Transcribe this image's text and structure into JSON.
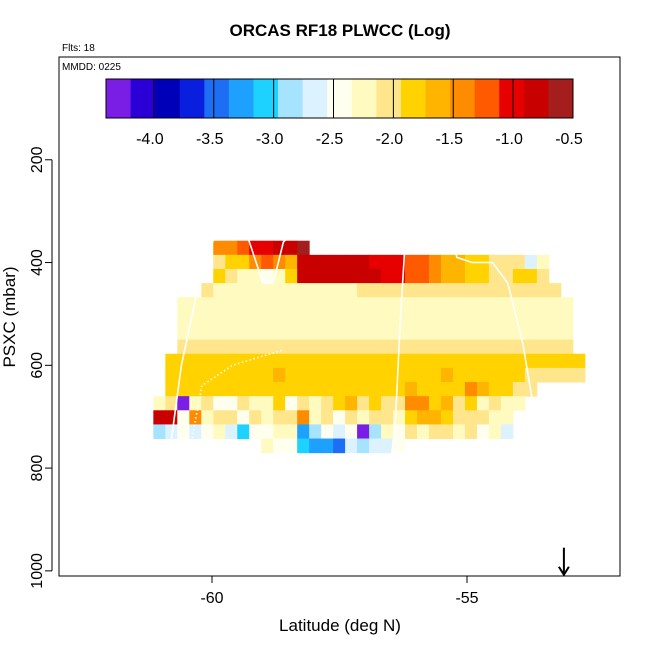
{
  "chart_data": {
    "type": "heatmap",
    "title": "ORCAS RF18 PLWCC (Log)",
    "flights_label": "Flts: 18",
    "date_label": "MMDD: 0225",
    "xlabel": "Latitude (deg N)",
    "ylabel": "PSXC (mbar)",
    "xlim": [
      -63.0,
      -52.0
    ],
    "ylim": [
      1010,
      0
    ],
    "x_ticks": [
      {
        "value": -60,
        "label": "-60"
      },
      {
        "value": -55,
        "label": "-55"
      }
    ],
    "y_ticks": [
      {
        "value": 200,
        "label": "200"
      },
      {
        "value": 400,
        "label": "400"
      },
      {
        "value": 600,
        "label": "600"
      },
      {
        "value": 800,
        "label": "800"
      },
      {
        "value": 1000,
        "label": "1000"
      }
    ],
    "colorbar": {
      "range": [
        -4.4,
        -0.5
      ],
      "colors": [
        "#7a1ee6",
        "#2a00d6",
        "#0000b8",
        "#0a1ee0",
        "#1e6ef5",
        "#1ea0ff",
        "#1ed2ff",
        "#a6e3ff",
        "#dcf2ff",
        "#fffff0",
        "#fffac0",
        "#ffe68c",
        "#ffd200",
        "#ffb400",
        "#ff8c00",
        "#ff5a00",
        "#e60000",
        "#c80000",
        "#a51e1e"
      ],
      "ticks": [
        {
          "value": -4.0,
          "label": "-4.0"
        },
        {
          "value": -3.5,
          "label": "-3.5"
        },
        {
          "value": -3.0,
          "label": "-3.0"
        },
        {
          "value": -2.5,
          "label": "-2.5"
        },
        {
          "value": -2.0,
          "label": "-2.0"
        },
        {
          "value": -1.5,
          "label": "-1.5"
        },
        {
          "value": -1.0,
          "label": "-1.0"
        },
        {
          "value": -0.5,
          "label": "-0.5"
        }
      ]
    },
    "cells": {
      "x_start": -61.15,
      "dx": 0.235,
      "p_start": 330,
      "dp": 27.5,
      "rows": [
        [
          null,
          null,
          null,
          null,
          null,
          null,
          null,
          null,
          null,
          null,
          null,
          null,
          null,
          null,
          null,
          null,
          null,
          null,
          null,
          null,
          null,
          null,
          null,
          null,
          null,
          null,
          null,
          null,
          null,
          null,
          null,
          null,
          null,
          null,
          null,
          null
        ],
        [
          null,
          null,
          null,
          null,
          null,
          -1.5,
          -1.4,
          -1.3,
          -1.1,
          -1.0,
          -0.9,
          -0.8,
          -0.6,
          null,
          null,
          null,
          null,
          null,
          null,
          null,
          null,
          null,
          null,
          null,
          null,
          null,
          null,
          null,
          null,
          null,
          null,
          null,
          null,
          null,
          null,
          null
        ],
        [
          null,
          null,
          null,
          null,
          null,
          -2.0,
          -1.9,
          -1.8,
          -1.4,
          -1.3,
          -1.5,
          -1.6,
          -0.8,
          -0.8,
          -0.8,
          -0.9,
          -0.9,
          -0.9,
          -1.0,
          -1.0,
          -1.1,
          -1.2,
          -1.3,
          -1.5,
          -1.6,
          -1.7,
          -1.8,
          -1.9,
          -2.0,
          -2.0,
          -2.1,
          -2.6,
          -2.3,
          null,
          null,
          null
        ],
        [
          null,
          null,
          null,
          null,
          null,
          -1.8,
          -2.0,
          -2.2,
          -2.3,
          -2.5,
          -2.2,
          -1.9,
          -0.8,
          -0.8,
          -0.8,
          -0.9,
          -0.9,
          -0.9,
          -0.9,
          -1.0,
          -1.1,
          -1.2,
          -1.3,
          -1.4,
          -1.6,
          -1.7,
          -1.8,
          -1.9,
          -2.0,
          -2.0,
          -1.9,
          -1.9,
          -2.0,
          null,
          null,
          null
        ],
        [
          null,
          null,
          null,
          null,
          -2.1,
          -2.2,
          -2.2,
          -2.2,
          -2.2,
          -2.2,
          -2.2,
          -2.2,
          -2.2,
          -2.2,
          -2.2,
          -2.2,
          -2.2,
          -2.1,
          -2.1,
          -2.1,
          -2.1,
          -2.1,
          -2.1,
          -2.1,
          -2.1,
          -2.1,
          -2.1,
          -2.1,
          -2.1,
          -2.1,
          -2.1,
          -2.1,
          -2.1,
          -2.1,
          null,
          null
        ],
        [
          null,
          null,
          -2.2,
          -2.2,
          -2.2,
          -2.3,
          -2.3,
          -2.3,
          -2.2,
          -2.2,
          -2.2,
          -2.2,
          -2.2,
          -2.2,
          -2.2,
          -2.2,
          -2.2,
          -2.2,
          -2.2,
          -2.2,
          -2.2,
          -2.2,
          -2.2,
          -2.2,
          -2.2,
          -2.2,
          -2.2,
          -2.2,
          -2.2,
          -2.2,
          -2.2,
          -2.2,
          -2.2,
          -2.2,
          -2.2,
          null
        ],
        [
          null,
          null,
          -2.3,
          -2.3,
          -2.3,
          -2.3,
          -2.3,
          -2.3,
          -2.3,
          -2.3,
          -2.2,
          -2.2,
          -2.3,
          -2.3,
          -2.3,
          -2.3,
          -2.2,
          -2.2,
          -2.2,
          -2.2,
          -2.2,
          -2.2,
          -2.2,
          -2.2,
          -2.2,
          -2.2,
          -2.2,
          -2.2,
          -2.2,
          -2.2,
          -2.2,
          -2.2,
          -2.2,
          -2.2,
          -2.2,
          null
        ],
        [
          null,
          null,
          -2.2,
          -2.2,
          -2.2,
          -2.2,
          -2.2,
          -2.2,
          -2.2,
          -2.2,
          -2.2,
          -2.2,
          -2.2,
          -2.2,
          -2.2,
          -2.2,
          -2.2,
          -2.2,
          -2.2,
          -2.2,
          -2.2,
          -2.2,
          -2.2,
          -2.2,
          -2.2,
          -2.2,
          -2.2,
          -2.2,
          -2.2,
          -2.2,
          -2.2,
          -2.2,
          -2.2,
          -2.2,
          -2.2,
          null
        ],
        [
          null,
          null,
          -2.1,
          -2.1,
          -2.1,
          -2.1,
          -2.1,
          -2.1,
          -2.1,
          -2.1,
          -2.1,
          -2.1,
          -2.1,
          -2.1,
          -2.1,
          -2.1,
          -2.1,
          -2.1,
          -2.1,
          -2.1,
          -2.1,
          -2.1,
          -2.1,
          -2.1,
          -2.1,
          -2.1,
          -2.1,
          -2.1,
          -2.1,
          -2.1,
          -2.1,
          -2.1,
          -2.1,
          -2.1,
          -2.1,
          null
        ],
        [
          null,
          -1.9,
          -1.9,
          -1.9,
          -1.8,
          -1.8,
          -1.8,
          -1.8,
          -1.8,
          -1.8,
          -1.8,
          -1.8,
          -1.8,
          -1.8,
          -1.8,
          -1.8,
          -1.8,
          -1.8,
          -1.8,
          -1.8,
          -1.8,
          -1.8,
          -1.8,
          -1.8,
          -1.8,
          -1.8,
          -1.8,
          -1.8,
          -1.8,
          -1.8,
          -1.8,
          -1.8,
          -1.8,
          -1.8,
          -1.8,
          -1.8
        ],
        [
          null,
          -1.8,
          -1.8,
          -1.8,
          -1.8,
          -1.8,
          -1.8,
          -1.8,
          -1.8,
          -1.8,
          -1.7,
          -1.8,
          -1.8,
          -1.8,
          -1.8,
          -1.8,
          -1.8,
          -1.8,
          -1.8,
          -1.8,
          -1.8,
          -1.8,
          -1.8,
          -1.8,
          -1.7,
          -1.8,
          -1.8,
          -1.8,
          -1.8,
          -1.8,
          -1.9,
          -2.0,
          -2.0,
          -2.1,
          -2.1,
          -2.1
        ],
        [
          null,
          -1.9,
          -1.9,
          -1.9,
          -1.9,
          -1.9,
          -1.9,
          -1.9,
          -1.9,
          -1.9,
          -1.9,
          -1.9,
          -1.9,
          -1.9,
          -1.8,
          -1.8,
          -1.8,
          -1.8,
          -1.8,
          -1.8,
          -1.8,
          -1.7,
          -1.8,
          -1.8,
          -1.8,
          -1.9,
          -1.5,
          -1.7,
          -1.8,
          -1.8,
          -2.0,
          -2.0,
          null,
          null,
          null,
          null
        ],
        [
          -2.2,
          -2.0,
          -4.4,
          -2.3,
          -2.1,
          -2.5,
          -2.4,
          -2.0,
          -2.2,
          -2.2,
          -1.9,
          -2.4,
          -2.0,
          -2.3,
          -2.1,
          -1.9,
          -1.6,
          -2.1,
          -1.9,
          -2.0,
          -2.1,
          -1.4,
          -1.5,
          -1.9,
          -1.6,
          -2.1,
          -1.9,
          -2.2,
          -2.0,
          -2.2,
          -2.3,
          null,
          null,
          null,
          null,
          null
        ],
        [
          -0.8,
          -0.8,
          -2.4,
          -1.5,
          -2.2,
          -2.1,
          -2.1,
          -2.4,
          -2.0,
          -2.3,
          -2.1,
          -2.0,
          -1.5,
          -2.2,
          -2.0,
          -2.5,
          -2.1,
          -2.2,
          -2.0,
          -2.1,
          -2.3,
          -1.9,
          -1.7,
          -1.7,
          -1.9,
          -2.0,
          -2.1,
          -2.1,
          -2.2,
          -2.3,
          null,
          null,
          null,
          null,
          null,
          null
        ],
        [
          -2.8,
          -2.6,
          -2.4,
          -2.7,
          -2.4,
          -2.3,
          -2.6,
          -3.0,
          -2.5,
          -2.4,
          -2.2,
          -2.2,
          -3.2,
          -2.8,
          -2.5,
          -2.6,
          -2.4,
          -4.2,
          -2.8,
          -2.3,
          -2.4,
          -2.1,
          -2.2,
          -2.0,
          -2.1,
          -2.3,
          -2.1,
          -2.4,
          -2.3,
          -2.6,
          null,
          null,
          null,
          null,
          null,
          null
        ],
        [
          null,
          null,
          null,
          null,
          null,
          null,
          null,
          null,
          null,
          -2.3,
          -2.4,
          -2.5,
          -3.0,
          -3.3,
          -3.2,
          -3.4,
          -2.7,
          -2.8,
          -2.7,
          -2.6,
          -2.5,
          null,
          null,
          null,
          null,
          null,
          null,
          null,
          null,
          null,
          null,
          null,
          null,
          null,
          null,
          null
        ]
      ]
    },
    "track_lines": [
      {
        "style": "solid",
        "points": [
          [
            -61.2,
            950
          ],
          [
            -60.9,
            820
          ],
          [
            -60.6,
            600
          ],
          [
            -60.3,
            460
          ],
          [
            -60.0,
            360
          ],
          [
            -59.8,
            340
          ],
          [
            -59.3,
            350
          ],
          [
            -59.0,
            440
          ],
          [
            -58.8,
            440
          ],
          [
            -58.6,
            360
          ],
          [
            -58.4,
            340
          ]
        ]
      },
      {
        "style": "dotted",
        "points": [
          [
            -60.8,
            900
          ],
          [
            -60.5,
            800
          ],
          [
            -60.2,
            640
          ],
          [
            -59.6,
            600
          ],
          [
            -58.6,
            570
          ]
        ]
      },
      {
        "style": "solid",
        "points": [
          [
            -56.7,
            960
          ],
          [
            -56.6,
            900
          ],
          [
            -56.4,
            700
          ],
          [
            -56.3,
            500
          ],
          [
            -56.2,
            340
          ]
        ]
      },
      {
        "style": "solid",
        "points": [
          [
            -55.3,
            340
          ],
          [
            -55.2,
            390
          ],
          [
            -54.9,
            400
          ],
          [
            -54.5,
            400
          ],
          [
            -54.2,
            440
          ],
          [
            -53.9,
            560
          ],
          [
            -53.7,
            680
          ],
          [
            -53.6,
            730
          ]
        ]
      },
      {
        "style": "solid",
        "points": [
          [
            -59.8,
            850
          ],
          [
            -59.4,
            960
          ],
          [
            -59.0,
            950
          ],
          [
            -58.6,
            880
          ],
          [
            -58.3,
            980
          ],
          [
            -58.0,
            960
          ],
          [
            -57.7,
            870
          ],
          [
            -57.3,
            950
          ],
          [
            -57.0,
            960
          ],
          [
            -56.8,
            860
          ],
          [
            -56.4,
            860
          ]
        ]
      },
      {
        "style": "dotted",
        "points": [
          [
            -59.6,
            880
          ],
          [
            -59.3,
            950
          ],
          [
            -58.9,
            930
          ],
          [
            -58.5,
            900
          ],
          [
            -58.2,
            950
          ],
          [
            -57.8,
            900
          ],
          [
            -57.4,
            960
          ],
          [
            -57.1,
            940
          ],
          [
            -56.8,
            960
          ],
          [
            -56.6,
            980
          ]
        ]
      },
      {
        "style": "solid",
        "points": [
          [
            -61.4,
            960
          ],
          [
            -61.2,
            960
          ],
          [
            -61.0,
            930
          ],
          [
            -60.8,
            940
          ]
        ]
      }
    ],
    "marker": {
      "type": "arrow-down",
      "x": -53.1,
      "p": 990
    }
  }
}
